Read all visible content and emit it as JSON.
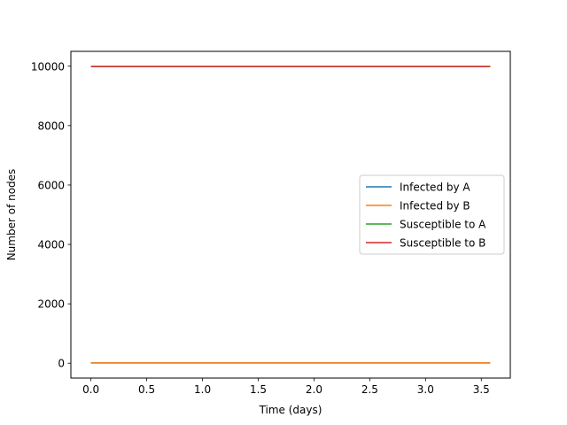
{
  "chart_data": {
    "type": "line",
    "title": "",
    "xlabel": "Time (days)",
    "ylabel": "Number of nodes",
    "xlim": [
      -0.18,
      3.76
    ],
    "ylim": [
      -500,
      10500
    ],
    "xticks": [
      0.0,
      0.5,
      1.0,
      1.5,
      2.0,
      2.5,
      3.0,
      3.5
    ],
    "xtick_labels": [
      "0.0",
      "0.5",
      "1.0",
      "1.5",
      "2.0",
      "2.5",
      "3.0",
      "3.5"
    ],
    "yticks": [
      0,
      2000,
      4000,
      6000,
      8000,
      10000
    ],
    "ytick_labels": [
      "0",
      "2000",
      "4000",
      "6000",
      "8000",
      "10000"
    ],
    "grid": false,
    "legend_position": "center-right",
    "series": [
      {
        "name": "Infected by A",
        "color": "#1f77b4",
        "x": [
          0,
          3.58
        ],
        "y": [
          10,
          10
        ]
      },
      {
        "name": "Infected by B",
        "color": "#ff7f0e",
        "x": [
          0,
          3.58
        ],
        "y": [
          10,
          10
        ]
      },
      {
        "name": "Susceptible to A",
        "color": "#2ca02c",
        "x": [
          0,
          3.58
        ],
        "y": [
          9990,
          9990
        ]
      },
      {
        "name": "Susceptible to B",
        "color": "#d62728",
        "x": [
          0,
          3.58
        ],
        "y": [
          9990,
          9990
        ]
      }
    ]
  }
}
